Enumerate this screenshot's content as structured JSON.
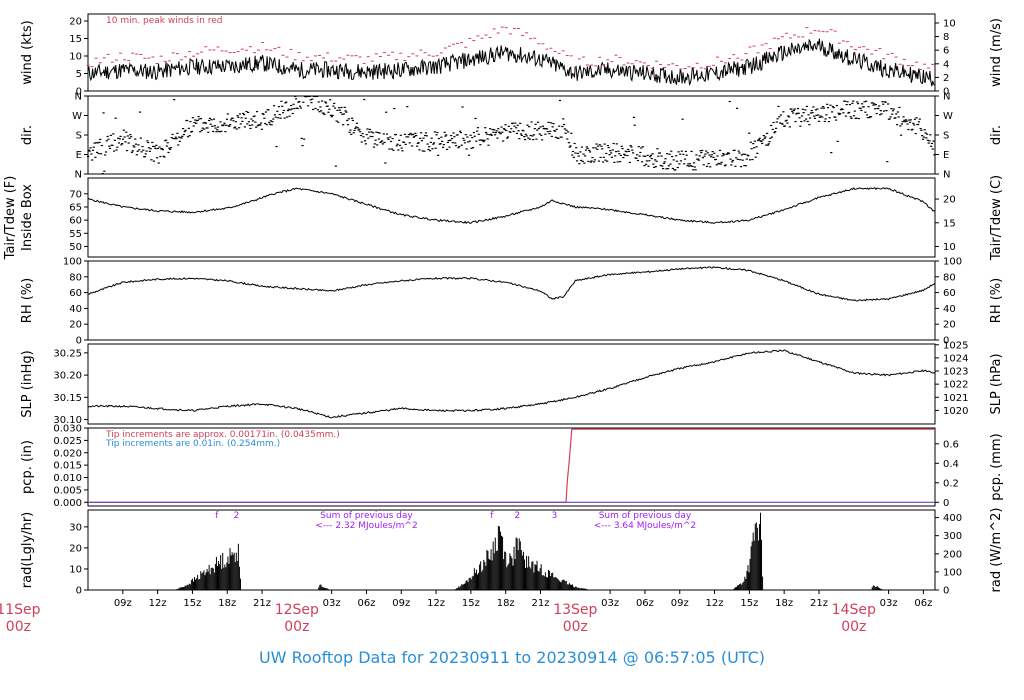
{
  "title": "UW Rooftop Data for 20230911  to  20230914 @ 06:57:05  (UTC)",
  "colors": {
    "peak": "#d0405a",
    "precip_approx": "#d0405a",
    "precip_tip": "#2a8fd6",
    "annotation": "#a020f0",
    "date": "#d0405a",
    "title": "#2a8fd6"
  },
  "time_axis": {
    "start_hour": 6,
    "end_hour": 79,
    "hour_ticks": [
      {
        "h": 9,
        "label": "09z"
      },
      {
        "h": 12,
        "label": "12z"
      },
      {
        "h": 15,
        "label": "15z"
      },
      {
        "h": 18,
        "label": "18z"
      },
      {
        "h": 21,
        "label": "21z"
      },
      {
        "h": 27,
        "label": "03z"
      },
      {
        "h": 30,
        "label": "06z"
      },
      {
        "h": 33,
        "label": "09z"
      },
      {
        "h": 36,
        "label": "12z"
      },
      {
        "h": 39,
        "label": "15z"
      },
      {
        "h": 42,
        "label": "18z"
      },
      {
        "h": 45,
        "label": "21z"
      },
      {
        "h": 51,
        "label": "03z"
      },
      {
        "h": 54,
        "label": "06z"
      },
      {
        "h": 57,
        "label": "09z"
      },
      {
        "h": 60,
        "label": "12z"
      },
      {
        "h": 63,
        "label": "15z"
      },
      {
        "h": 66,
        "label": "18z"
      },
      {
        "h": 69,
        "label": "21z"
      },
      {
        "h": 75,
        "label": "03z"
      },
      {
        "h": 78,
        "label": "06z"
      }
    ],
    "day_labels": [
      {
        "h": 0,
        "day": "11Sep",
        "z": "00z"
      },
      {
        "h": 24,
        "day": "12Sep",
        "z": "00z"
      },
      {
        "h": 48,
        "day": "13Sep",
        "z": "00z"
      },
      {
        "h": 72,
        "day": "14Sep",
        "z": "00z"
      }
    ]
  },
  "chart_data": [
    {
      "type": "line",
      "panel": "wind",
      "ylabel": "wind (kts)",
      "ylabel_right": "wind (m/s)",
      "ylim": [
        0,
        22
      ],
      "yticks": [
        0,
        5,
        10,
        15,
        20
      ],
      "yticks_right": [
        0,
        2,
        4,
        6,
        8,
        10
      ],
      "annotation": "10 min. peak winds in red",
      "series": [
        {
          "name": "wind",
          "x": [
            6,
            9,
            12,
            15,
            18,
            21,
            24,
            27,
            30,
            33,
            36,
            39,
            42,
            45,
            48,
            51,
            54,
            57,
            60,
            63,
            66,
            69,
            72,
            75,
            78,
            79
          ],
          "values": [
            5,
            6,
            5.5,
            7,
            7,
            8,
            6,
            6,
            5.5,
            6,
            7,
            9,
            11,
            9,
            5,
            6,
            5,
            4,
            5,
            7,
            11,
            13,
            9,
            6,
            4,
            3.5
          ]
        },
        {
          "name": "10 min. peak winds",
          "x": [
            6,
            9,
            12,
            15,
            18,
            21,
            24,
            27,
            30,
            33,
            36,
            39,
            42,
            45,
            48,
            51,
            54,
            57,
            60,
            63,
            66,
            69,
            72,
            75,
            78,
            79
          ],
          "values": [
            8,
            10,
            9,
            11,
            12,
            12.5,
            10,
            9.5,
            9,
            10,
            11,
            14,
            18,
            14,
            8,
            9,
            8,
            7,
            8,
            11,
            15,
            18,
            13,
            10,
            7,
            6
          ]
        }
      ]
    },
    {
      "type": "scatter",
      "panel": "dir",
      "ylabel": "dir.",
      "ylabel_right": "dir.",
      "ylim": [
        0,
        360
      ],
      "ytick_labels": [
        "N",
        "E",
        "S",
        "W",
        "N"
      ],
      "series": [
        {
          "name": "dir",
          "x": [
            6,
            9,
            12,
            15,
            18,
            21,
            22,
            25,
            27,
            30,
            33,
            36,
            39,
            42,
            45,
            47,
            48,
            51,
            54,
            57,
            60,
            63,
            66,
            69,
            72,
            75,
            78,
            79
          ],
          "values": [
            100,
            160,
            90,
            230,
            240,
            250,
            270,
            350,
            300,
            170,
            140,
            150,
            160,
            190,
            200,
            210,
            90,
            100,
            80,
            60,
            70,
            80,
            250,
            280,
            300,
            290,
            200,
            110
          ]
        }
      ]
    },
    {
      "type": "line",
      "panel": "temp",
      "ylabel": "Tair/Tdew (F)",
      "ylabel2": "Inside Box",
      "ylabel_right": "Tair/Tdew (C)",
      "ylim": [
        46,
        76
      ],
      "yticks": [
        50,
        55,
        60,
        65,
        70
      ],
      "yticks_right_c": [
        10,
        15,
        20
      ],
      "series": [
        {
          "name": "Tair",
          "x": [
            6,
            9,
            12,
            15,
            18,
            20,
            22,
            24,
            27,
            30,
            33,
            36,
            39,
            42,
            45,
            46,
            48,
            51,
            54,
            57,
            60,
            63,
            66,
            69,
            72,
            75,
            78,
            79
          ],
          "values": [
            68,
            65,
            63.5,
            63,
            64.5,
            67,
            70,
            72,
            70,
            66,
            62,
            60,
            59,
            61.5,
            65,
            67.5,
            65,
            64,
            62,
            60,
            59,
            60,
            64,
            68.5,
            72,
            72,
            67,
            63
          ]
        }
      ]
    },
    {
      "type": "line",
      "panel": "rh",
      "ylabel": "RH (%)",
      "ylabel_right": "RH (%)",
      "ylim": [
        0,
        100
      ],
      "yticks": [
        0,
        20,
        40,
        60,
        80,
        100
      ],
      "series": [
        {
          "name": "RH",
          "x": [
            6,
            9,
            12,
            15,
            18,
            21,
            24,
            27,
            30,
            33,
            36,
            39,
            42,
            45,
            46,
            47,
            48,
            51,
            54,
            57,
            60,
            63,
            66,
            69,
            72,
            75,
            78,
            79
          ],
          "values": [
            58,
            73,
            77,
            78,
            75,
            68,
            65,
            62,
            70,
            75,
            78,
            78,
            73,
            62,
            52,
            55,
            75,
            83,
            86,
            90,
            92,
            88,
            75,
            58,
            50,
            52,
            63,
            72
          ]
        }
      ]
    },
    {
      "type": "line",
      "panel": "slp",
      "ylabel": "SLP (inHg)",
      "ylabel_right": "SLP (hPa)",
      "ylim": [
        30.09,
        30.27
      ],
      "yticks": [
        30.1,
        30.15,
        30.2,
        30.25
      ],
      "yticks_right_hpa": [
        1020,
        1021,
        1022,
        1023,
        1024,
        1025
      ],
      "series": [
        {
          "name": "SLP",
          "x": [
            6,
            9,
            12,
            15,
            18,
            21,
            24,
            27,
            30,
            33,
            36,
            39,
            42,
            45,
            48,
            51,
            54,
            57,
            60,
            63,
            66,
            69,
            72,
            75,
            78,
            79
          ],
          "values": [
            30.13,
            30.13,
            30.125,
            30.12,
            30.13,
            30.135,
            30.125,
            30.105,
            30.115,
            30.125,
            30.12,
            30.12,
            30.125,
            30.135,
            30.15,
            30.17,
            30.195,
            30.215,
            30.23,
            30.25,
            30.255,
            30.23,
            30.205,
            30.2,
            30.21,
            30.205
          ]
        }
      ]
    },
    {
      "type": "line",
      "panel": "pcp",
      "ylabel": "pcp. (in)",
      "ylabel_right": "pcp. (mm)",
      "ylim": [
        -0.0015,
        0.03
      ],
      "yticks": [
        0.0,
        0.005,
        0.01,
        0.015,
        0.02,
        0.025,
        0.03
      ],
      "yticks_right_mm": [
        0,
        0.2,
        0.4,
        0.6
      ],
      "annotation1": "Tip increments are approx. 0.00171in. (0.0435mm.)",
      "annotation2": "Tip increments are 0.01in. (0.254mm.)",
      "series": [
        {
          "name": "approx tips",
          "x": [
            6,
            47.2,
            47.3,
            47.5,
            47.7,
            79
          ],
          "values": [
            0,
            0,
            0.008,
            0.018,
            0.0295,
            0.0295
          ]
        },
        {
          "name": "tips",
          "x": [
            6,
            79
          ],
          "values": [
            0,
            0
          ]
        }
      ]
    },
    {
      "type": "area",
      "panel": "rad",
      "ylabel": "rad(Lgly/hr)",
      "ylabel_right": "rad (W/m^2)",
      "ylim": [
        0,
        38
      ],
      "yticks": [
        0,
        10,
        20,
        30
      ],
      "yticks_right_wm2": [
        0,
        100,
        200,
        300,
        400
      ],
      "day_markers": [
        {
          "h": 17.1,
          "label": "f"
        },
        {
          "h": 18.8,
          "label": "2"
        },
        {
          "h": 40.8,
          "label": "f"
        },
        {
          "h": 43.0,
          "label": "2"
        },
        {
          "h": 46.2,
          "label": "3"
        }
      ],
      "sum_notes": [
        {
          "h": 30.0,
          "line1": "Sum of previous day",
          "line2": "<--- 2.32 MJoules/m^2"
        },
        {
          "h": 54.0,
          "line1": "Sum of previous day",
          "line2": "<--- 3.64 MJoules/m^2"
        }
      ],
      "series": [
        {
          "name": "rad",
          "x": [
            6,
            13.5,
            14.5,
            15.5,
            16.5,
            17.5,
            18.5,
            19.0,
            19.2,
            25.8,
            26.0,
            26.6,
            26.8,
            37.5,
            38.5,
            39.5,
            40.5,
            41.0,
            41.5,
            42.0,
            42.5,
            43.0,
            43.5,
            44.0,
            45.0,
            46.0,
            47.0,
            48.0,
            49.0,
            49.2,
            61.5,
            62.5,
            63.0,
            63.5,
            64.0,
            64.2,
            73.5,
            73.7,
            74.3,
            74.5,
            79
          ],
          "values": [
            0,
            0,
            3,
            8,
            13,
            18,
            21,
            26,
            0,
            0,
            3,
            1,
            0,
            0,
            4,
            12,
            20,
            26,
            37,
            20,
            18,
            28,
            20,
            16,
            13,
            9,
            5,
            2,
            0.5,
            0,
            0,
            5,
            15,
            36,
            37,
            0,
            0,
            3,
            1,
            0,
            0
          ]
        }
      ]
    }
  ]
}
